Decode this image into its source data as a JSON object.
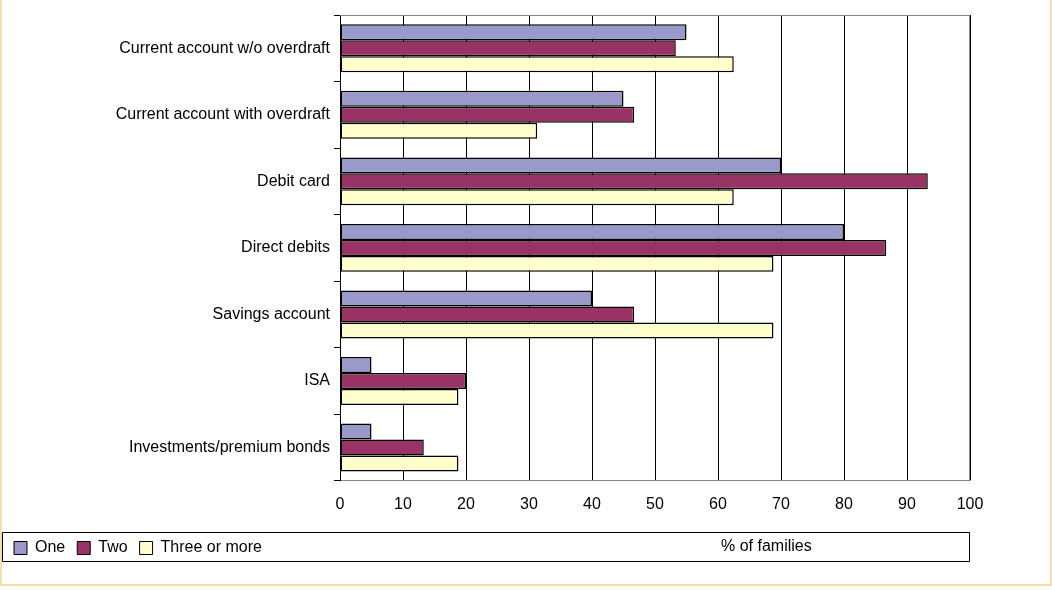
{
  "chart_data": {
    "type": "bar",
    "orientation": "horizontal",
    "xlabel": "% of families",
    "categories": [
      "Current account w/o overdraft",
      "Current account with overdraft",
      "Debit card",
      "Direct debits",
      "Savings account",
      "ISA",
      "Investments/premium bonds"
    ],
    "series": [
      {
        "name": "One",
        "color": "#9999cc",
        "values": [
          55,
          45,
          70,
          80,
          40,
          5,
          5
        ]
      },
      {
        "name": "Two",
        "color": "#993366",
        "values": [
          53.3,
          46.7,
          93.3,
          86.7,
          46.7,
          20,
          13.3
        ]
      },
      {
        "name": "Three or more",
        "color": "#ffffcc",
        "values": [
          62.5,
          31.3,
          62.5,
          68.8,
          68.8,
          18.8,
          18.8
        ]
      }
    ],
    "xlim": [
      0,
      100
    ],
    "xticks": [
      0,
      10,
      20,
      30,
      40,
      50,
      60,
      70,
      80,
      90,
      100
    ],
    "grid": "x",
    "legend": "bottom left"
  }
}
